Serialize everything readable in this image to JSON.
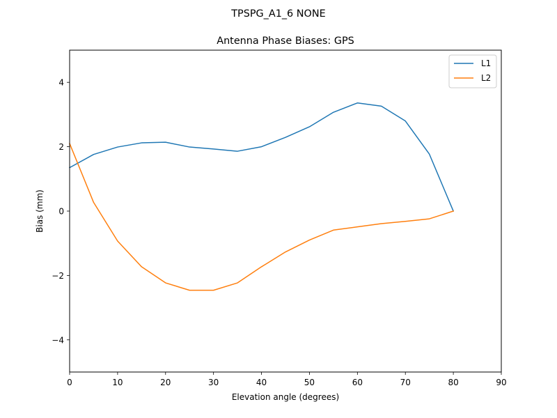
{
  "figure": {
    "suptitle": "TPSPG_A1_6      NONE"
  },
  "chart_data": {
    "type": "line",
    "title": "Antenna Phase Biases: GPS",
    "xlabel": "Elevation angle (degrees)",
    "ylabel": "Bias (mm)",
    "xlim": [
      0,
      90
    ],
    "ylim": [
      -5,
      5
    ],
    "xticks": [
      0,
      10,
      20,
      30,
      40,
      50,
      60,
      70,
      80,
      90
    ],
    "yticks": [
      -4,
      -2,
      0,
      2,
      4
    ],
    "xtick_labels": [
      "0",
      "10",
      "20",
      "30",
      "40",
      "50",
      "60",
      "70",
      "80",
      "90"
    ],
    "ytick_labels": [
      "−4",
      "−2",
      "0",
      "2",
      "4"
    ],
    "grid": false,
    "legend_position": "top-right",
    "x": [
      0,
      5,
      10,
      15,
      20,
      25,
      30,
      35,
      40,
      45,
      50,
      55,
      60,
      65,
      70,
      75,
      80
    ],
    "series": [
      {
        "name": "L1",
        "color": "#1f77b4",
        "values": [
          1.35,
          1.76,
          1.99,
          2.12,
          2.14,
          1.99,
          1.93,
          1.86,
          2.0,
          2.29,
          2.62,
          3.07,
          3.36,
          3.26,
          2.8,
          1.77,
          0.0
        ]
      },
      {
        "name": "L2",
        "color": "#ff7f0e",
        "values": [
          2.1,
          0.27,
          -0.93,
          -1.73,
          -2.23,
          -2.46,
          -2.46,
          -2.23,
          -1.73,
          -1.27,
          -0.9,
          -0.59,
          -0.49,
          -0.39,
          -0.32,
          -0.24,
          0.0
        ]
      }
    ]
  }
}
